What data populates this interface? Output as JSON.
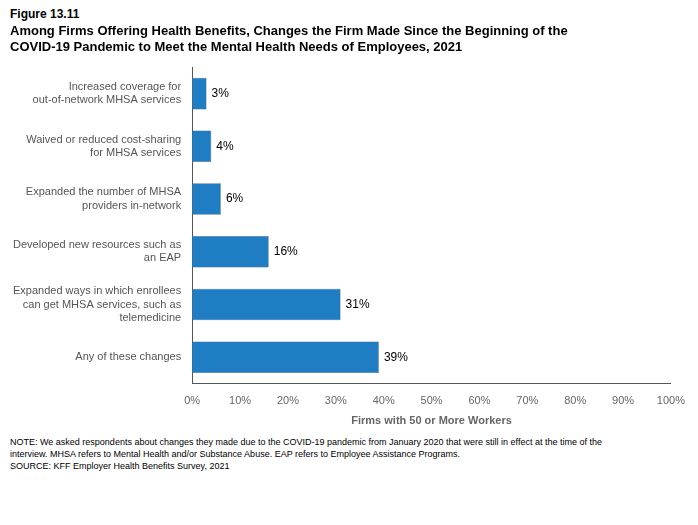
{
  "chart_data": {
    "type": "bar",
    "orientation": "horizontal",
    "title": [
      "Among Firms Offering Health Benefits, Changes the Firm Made Since the Beginning of the",
      "COVID-19 Pandemic to Meet the Mental Health Needs of Employees, 2021"
    ],
    "annotations": [
      "Figure 13.11",
      "NOTE:  We asked respondents about changes they made due to the COVID-19 pandemic from January 2020 that were still in effect at the time of the",
      "interview.  MHSA refers to Mental Health and/or Substance Abuse.  EAP refers to Employee Assistance Programs.",
      "SOURCE:  KFF Employer Health Benefits Survey, 2021"
    ],
    "x_label": "Firms with 50 or More Workers",
    "categories": [
      "Increased coverage for\nout-of-network MHSA services",
      "Waived or reduced cost-sharing\nfor MHSA services",
      "Expanded the number of MHSA\nproviders in-network",
      "Developed new resources such as\nan EAP",
      "Expanded ways in which enrollees\ncan get MHSA services, such as\ntelemedicine",
      "Any of these changes"
    ],
    "values": [
      3,
      4,
      6,
      16,
      31,
      39
    ],
    "value_labels": [
      "3%",
      "4%",
      "6%",
      "16%",
      "31%",
      "39%"
    ],
    "data_labels": true,
    "color": "#1F7DC4",
    "xlim": [
      0,
      100
    ],
    "xticks": [
      {
        "value": 0,
        "label": "0%"
      },
      {
        "value": 10,
        "label": "10%"
      },
      {
        "value": 20,
        "label": "20%"
      },
      {
        "value": 30,
        "label": "30%"
      },
      {
        "value": 40,
        "label": "40%"
      },
      {
        "value": 50,
        "label": "50%"
      },
      {
        "value": 60,
        "label": "60%"
      },
      {
        "value": 70,
        "label": "70%"
      },
      {
        "value": 80,
        "label": "80%"
      },
      {
        "value": 90,
        "label": "90%"
      },
      {
        "value": 100,
        "label": "100%"
      }
    ],
    "grid": false
  }
}
